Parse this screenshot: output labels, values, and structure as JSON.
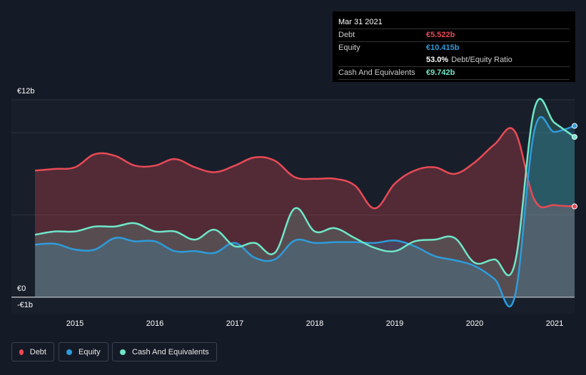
{
  "tooltip": {
    "date": "Mar 31 2021",
    "debt_label": "Debt",
    "debt_value": "€5.522b",
    "equity_label": "Equity",
    "equity_value": "€10.415b",
    "ratio_value": "53.0%",
    "ratio_label": "Debt/Equity Ratio",
    "cash_label": "Cash And Equivalents",
    "cash_value": "€9.742b"
  },
  "legend": {
    "debt": "Debt",
    "equity": "Equity",
    "cash": "Cash And Equivalents"
  },
  "colors": {
    "debt": "#e84a55",
    "equity": "#2d9cdb",
    "cash": "#6ee7c8",
    "background": "#151b26"
  },
  "chart_data": {
    "type": "area",
    "ylim": [
      -1,
      12
    ],
    "y_tick_labels": [
      "€12b",
      "€0",
      "-€1b"
    ],
    "x_ticks": [
      2015,
      2016,
      2017,
      2018,
      2019,
      2020,
      2021
    ],
    "x_tick_labels": [
      "2015",
      "2016",
      "2017",
      "2018",
      "2019",
      "2020",
      "2021"
    ],
    "series": [
      {
        "name": "Debt",
        "points": [
          [
            2014.5,
            7.7
          ],
          [
            2014.75,
            7.8
          ],
          [
            2015.0,
            7.9
          ],
          [
            2015.25,
            8.7
          ],
          [
            2015.5,
            8.6
          ],
          [
            2015.75,
            8.0
          ],
          [
            2016.0,
            8.0
          ],
          [
            2016.25,
            8.4
          ],
          [
            2016.5,
            7.9
          ],
          [
            2016.75,
            7.6
          ],
          [
            2017.0,
            8.0
          ],
          [
            2017.25,
            8.5
          ],
          [
            2017.5,
            8.3
          ],
          [
            2017.75,
            7.3
          ],
          [
            2018.0,
            7.2
          ],
          [
            2018.25,
            7.2
          ],
          [
            2018.5,
            6.8
          ],
          [
            2018.75,
            5.4
          ],
          [
            2019.0,
            6.9
          ],
          [
            2019.25,
            7.7
          ],
          [
            2019.5,
            7.9
          ],
          [
            2019.75,
            7.5
          ],
          [
            2020.0,
            8.2
          ],
          [
            2020.25,
            9.3
          ],
          [
            2020.5,
            10.1
          ],
          [
            2020.75,
            5.9
          ],
          [
            2021.0,
            5.6
          ],
          [
            2021.25,
            5.522
          ]
        ]
      },
      {
        "name": "Equity",
        "points": [
          [
            2014.5,
            3.2
          ],
          [
            2014.75,
            3.25
          ],
          [
            2015.0,
            2.9
          ],
          [
            2015.25,
            2.9
          ],
          [
            2015.5,
            3.6
          ],
          [
            2015.75,
            3.4
          ],
          [
            2016.0,
            3.4
          ],
          [
            2016.25,
            2.8
          ],
          [
            2016.5,
            2.8
          ],
          [
            2016.75,
            2.7
          ],
          [
            2017.0,
            3.3
          ],
          [
            2017.25,
            2.4
          ],
          [
            2017.5,
            2.3
          ],
          [
            2017.75,
            3.45
          ],
          [
            2018.0,
            3.3
          ],
          [
            2018.25,
            3.35
          ],
          [
            2018.5,
            3.35
          ],
          [
            2018.75,
            3.3
          ],
          [
            2019.0,
            3.45
          ],
          [
            2019.25,
            3.1
          ],
          [
            2019.5,
            2.5
          ],
          [
            2019.75,
            2.25
          ],
          [
            2020.0,
            1.9
          ],
          [
            2020.25,
            1.1
          ],
          [
            2020.5,
            0.0
          ],
          [
            2020.75,
            10.2
          ],
          [
            2021.0,
            10.05
          ],
          [
            2021.25,
            10.415
          ]
        ]
      },
      {
        "name": "Cash And Equivalents",
        "points": [
          [
            2014.5,
            3.8
          ],
          [
            2014.75,
            4.0
          ],
          [
            2015.0,
            4.0
          ],
          [
            2015.25,
            4.3
          ],
          [
            2015.5,
            4.3
          ],
          [
            2015.75,
            4.5
          ],
          [
            2016.0,
            4.0
          ],
          [
            2016.25,
            4.0
          ],
          [
            2016.5,
            3.5
          ],
          [
            2016.75,
            4.1
          ],
          [
            2017.0,
            3.1
          ],
          [
            2017.25,
            3.3
          ],
          [
            2017.5,
            2.7
          ],
          [
            2017.75,
            5.4
          ],
          [
            2018.0,
            4.0
          ],
          [
            2018.25,
            4.2
          ],
          [
            2018.5,
            3.6
          ],
          [
            2018.75,
            3.0
          ],
          [
            2019.0,
            2.8
          ],
          [
            2019.25,
            3.4
          ],
          [
            2019.5,
            3.5
          ],
          [
            2019.75,
            3.6
          ],
          [
            2020.0,
            2.1
          ],
          [
            2020.25,
            2.3
          ],
          [
            2020.5,
            2.0
          ],
          [
            2020.75,
            11.5
          ],
          [
            2021.0,
            10.6
          ],
          [
            2021.25,
            9.742
          ]
        ]
      }
    ]
  }
}
